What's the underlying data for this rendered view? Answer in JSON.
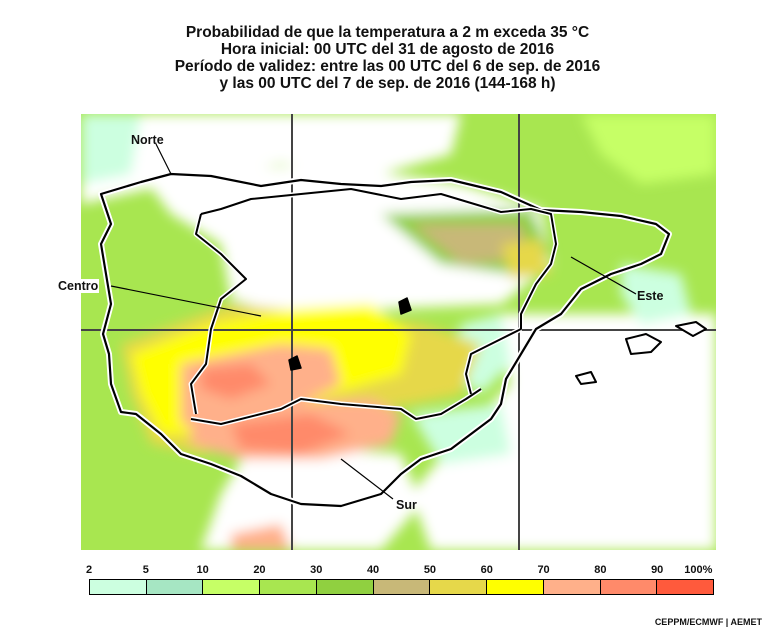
{
  "title": {
    "line1": "Probabilidad de que la temperatura a 2 m exceda 35 °C",
    "line2": "Hora inicial: 00 UTC del 31 de agosto de 2016",
    "line3": "Período de validez: entre las 00 UTC del 6 de sep. de 2016",
    "line4": "y las 00 UTC del 7 de sep. de 2016 (144-168 h)"
  },
  "regions": {
    "norte": "Norte",
    "centro": "Centro",
    "este": "Este",
    "sur": "Sur"
  },
  "legend": {
    "ticks": [
      "2",
      "5",
      "10",
      "20",
      "30",
      "40",
      "50",
      "60",
      "70",
      "80",
      "90",
      "100%"
    ],
    "colors": [
      "#ccffe0",
      "#a6e6c3",
      "#c6ff66",
      "#a8e650",
      "#90d040",
      "#c8b878",
      "#e6d84a",
      "#ffff00",
      "#ffb08a",
      "#ff8a6a",
      "#ff5a3c"
    ]
  },
  "palette": {
    "land_low": "#ffffff",
    "sea": "#ffffff",
    "border": "#000000",
    "grid": "#444444"
  },
  "credit": "CEPPM/ECMWF | AEMET"
}
